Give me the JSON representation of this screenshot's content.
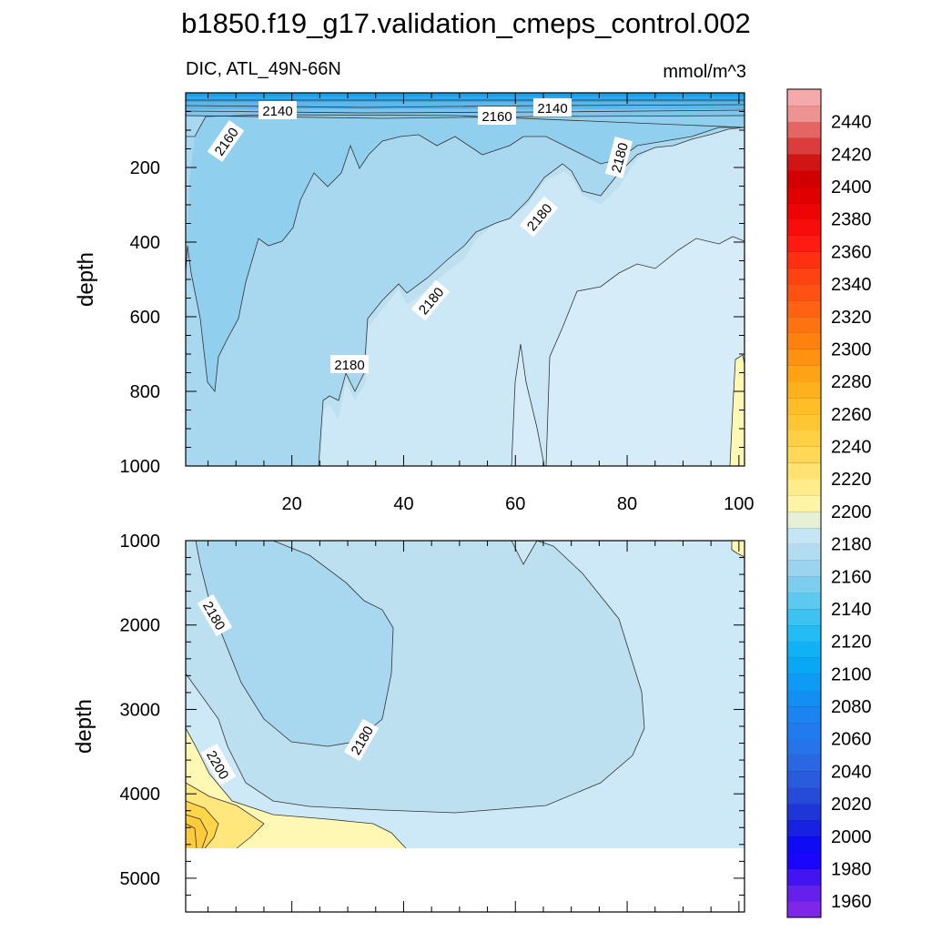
{
  "chart_data": {
    "type": "contour",
    "title": "b1850.f19_g17.validation_cmeps_control.002",
    "subtitle_left": "DIC, ATL_49N-66N",
    "units": "mmol/m^3",
    "panels": [
      {
        "name": "upper",
        "ylabel": "depth",
        "ylim": [
          0,
          1000
        ],
        "yticks": [
          "200",
          "400",
          "600",
          "800",
          "1000"
        ],
        "xlim": [
          1,
          101
        ],
        "xticks": [
          "20",
          "40",
          "60",
          "80",
          "100"
        ],
        "contour_labels": [
          "2140",
          "2160",
          "2140",
          "2160",
          "2180",
          "2180",
          "2180",
          "2180"
        ]
      },
      {
        "name": "lower",
        "ylabel": "depth",
        "ylim": [
          1000,
          5400
        ],
        "yticks": [
          "1000",
          "2000",
          "3000",
          "4000",
          "5000"
        ],
        "xlim": [
          1,
          101
        ],
        "contour_labels": [
          "2180",
          "2180",
          "2200"
        ]
      }
    ],
    "colorbar": {
      "min": 1950,
      "max": 2460,
      "step": 10,
      "labels": [
        "2440",
        "2420",
        "2400",
        "2380",
        "2360",
        "2340",
        "2320",
        "2300",
        "2280",
        "2260",
        "2240",
        "2220",
        "2200",
        "2180",
        "2160",
        "2140",
        "2120",
        "2100",
        "2080",
        "2060",
        "2040",
        "2020",
        "2000",
        "1980",
        "1960"
      ]
    }
  }
}
